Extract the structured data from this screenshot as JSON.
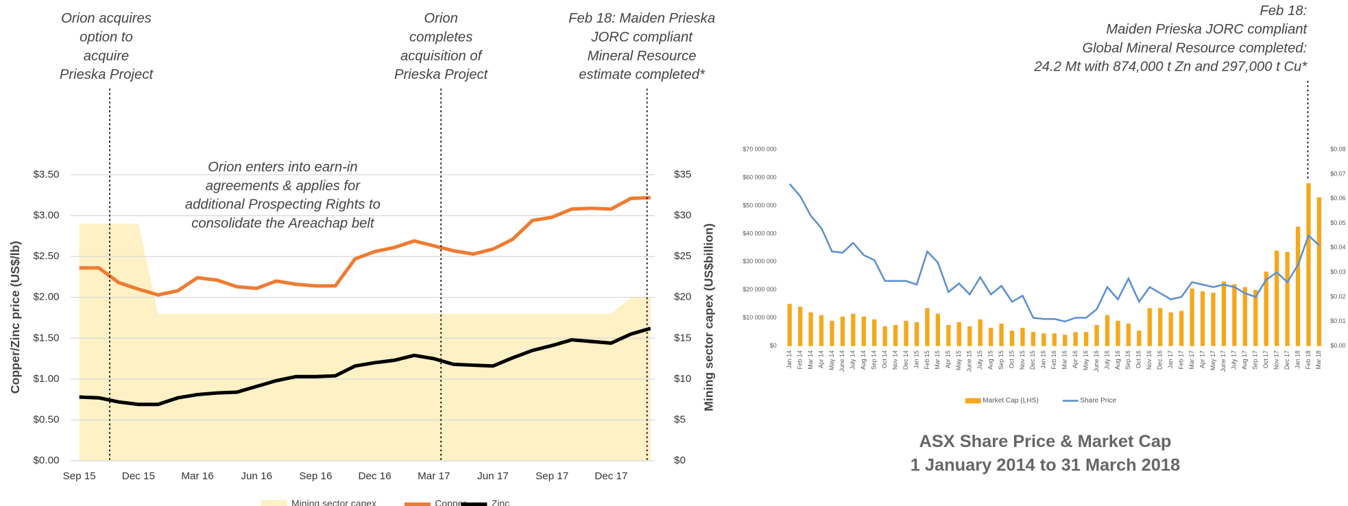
{
  "chart_data": [
    {
      "type": "line",
      "id": "left",
      "categories": [
        "Sep 15",
        null,
        null,
        "Dec 15",
        null,
        null,
        "Mar 16",
        null,
        null,
        "Jun 16",
        null,
        null,
        "Sep 16",
        null,
        null,
        "Dec 16",
        null,
        null,
        "Mar 17",
        null,
        null,
        "Jun 17",
        null,
        null,
        "Sep 17",
        null,
        null,
        "Dec 17",
        null,
        null
      ],
      "series": [
        {
          "name": "Mining sector capex",
          "color": "#fdf1c5",
          "axis": "y2",
          "kind": "area",
          "values": [
            29,
            29,
            29,
            29,
            18,
            18,
            18,
            18,
            18,
            18,
            18,
            18,
            18,
            18,
            18,
            18,
            18,
            18,
            18,
            18,
            18,
            18,
            18,
            18,
            18,
            18,
            18,
            18,
            20,
            20
          ]
        },
        {
          "name": "Copper",
          "color": "#ef7b32",
          "values": [
            2.36,
            2.36,
            2.18,
            2.1,
            2.03,
            2.08,
            2.24,
            2.21,
            2.13,
            2.11,
            2.2,
            2.16,
            2.14,
            2.14,
            2.47,
            2.56,
            2.61,
            2.69,
            2.63,
            2.57,
            2.53,
            2.59,
            2.71,
            2.94,
            2.98,
            3.08,
            3.09,
            3.08,
            3.21,
            3.22
          ]
        },
        {
          "name": "Zinc",
          "color": "#000000",
          "values": [
            0.78,
            0.77,
            0.72,
            0.69,
            0.69,
            0.77,
            0.81,
            0.83,
            0.84,
            0.91,
            0.98,
            1.03,
            1.03,
            1.04,
            1.16,
            1.2,
            1.23,
            1.29,
            1.25,
            1.18,
            1.17,
            1.16,
            1.26,
            1.35,
            1.41,
            1.48,
            1.46,
            1.44,
            1.55,
            1.62
          ]
        }
      ],
      "ylabel": "Copper/Zinc price (US$/lb)",
      "y2label": "Mining sector capex (US$billion)",
      "ylim": [
        0,
        3.5
      ],
      "yticks": [
        {
          "value": 0,
          "label": "$0.00"
        },
        {
          "value": 0.5,
          "label": "$0.50"
        },
        {
          "value": 1,
          "label": "$1.00"
        },
        {
          "value": 1.5,
          "label": "$1.50"
        },
        {
          "value": 2,
          "label": "$2.00"
        },
        {
          "value": 2.5,
          "label": "$2.50"
        },
        {
          "value": 3,
          "label": "$3.00"
        },
        {
          "value": 3.5,
          "label": "$3.50"
        }
      ],
      "y2lim": [
        0,
        35
      ],
      "y2ticks": [
        {
          "value": 0,
          "label": "$0"
        },
        {
          "value": 5,
          "label": "$5"
        },
        {
          "value": 10,
          "label": "$10"
        },
        {
          "value": 15,
          "label": "$15"
        },
        {
          "value": 20,
          "label": "$20"
        },
        {
          "value": 25,
          "label": "$25"
        },
        {
          "value": 30,
          "label": "$30"
        },
        {
          "value": 35,
          "label": "$35"
        }
      ],
      "grid": true,
      "legend": "bottom",
      "annotations": [
        [
          "Orion acquires",
          "option to",
          "acquire",
          "Prieska Project"
        ],
        [
          "Orion",
          "completes",
          "acquisition of",
          "Prieska Project"
        ],
        [
          "Feb 18: Maiden Prieska",
          "JORC compliant",
          "Mineral Resource",
          "estimate completed*"
        ],
        [
          "Orion enters into earn-in",
          "agreements & applies for",
          "additional Prospecting Rights to",
          "consolidate the Areachap belt"
        ]
      ]
    },
    {
      "type": "bar",
      "id": "right",
      "title": [
        "ASX Share Price & Market Cap",
        "1 January 2014 to 31 March 2018"
      ],
      "categories": [
        "Jan 14",
        "Feb 14",
        "Mar 14",
        "Apr 14",
        "May 14",
        "June 14",
        "July 14",
        "Aug 14",
        "Sep 14",
        "Oct 14",
        "Nov 14",
        "Dec 14",
        "Jan 15",
        "Feb 15",
        "Mar 15",
        "Apr 15",
        "May 15",
        "June 15",
        "July 15",
        "Aug 15",
        "Sep 15",
        "Oct 15",
        "Nov 15",
        "Dec 15",
        "Jan 16",
        "Feb 16",
        "Mar 16",
        "Apr 16",
        "May 16",
        "June 16",
        "July 16",
        "Aug 16",
        "Sep 16",
        "Oct 16",
        "Nov 16",
        "Dec 16",
        "Jan 17",
        "Feb 17",
        "Mar 17",
        "Apr 17",
        "May 17",
        "June 17",
        "July 17",
        "Aug 17",
        "Sep 17",
        "Oct 17",
        "Nov 17",
        "Dec 17",
        "Jan 18",
        "Feb 18",
        "Mar 18"
      ],
      "series": [
        {
          "name": "Market Cap (LHS)",
          "color": "#f5a81c",
          "kind": "bar",
          "values": [
            15000000,
            14000000,
            12000000,
            11000000,
            9000000,
            10500000,
            11500000,
            10500000,
            9500000,
            7000000,
            7500000,
            9000000,
            8500000,
            13500000,
            11500000,
            7500000,
            8500000,
            7000000,
            9500000,
            6500000,
            8000000,
            5500000,
            6500000,
            5000000,
            4500000,
            4500000,
            4000000,
            5000000,
            5000000,
            7500000,
            11000000,
            9000000,
            8000000,
            5500000,
            13500000,
            13500000,
            12000000,
            12500000,
            20500000,
            19500000,
            19000000,
            23000000,
            22000000,
            21000000,
            20000000,
            26500000,
            34000000,
            33500000,
            42500000,
            58000000,
            53000000
          ]
        },
        {
          "name": "Share Price",
          "color": "#5b8fd0",
          "axis": "y2",
          "values": [
            0.066,
            0.061,
            0.053,
            0.048,
            0.0385,
            0.038,
            0.042,
            0.037,
            0.035,
            0.0265,
            0.0265,
            0.0265,
            0.025,
            0.0385,
            0.034,
            0.022,
            0.0255,
            0.021,
            0.028,
            0.021,
            0.0245,
            0.018,
            0.0205,
            0.0115,
            0.011,
            0.011,
            0.01,
            0.0115,
            0.0115,
            0.015,
            0.024,
            0.019,
            0.0275,
            0.018,
            0.024,
            0.0215,
            0.019,
            0.02,
            0.026,
            0.025,
            0.024,
            0.025,
            0.024,
            0.0215,
            0.02,
            0.027,
            0.03,
            0.026,
            0.033,
            0.045,
            0.041
          ]
        }
      ],
      "ylim": [
        0,
        70000000
      ],
      "yticks": [
        {
          "value": 0,
          "label": "$0"
        },
        {
          "value": 10000000,
          "label": "$10 000 000"
        },
        {
          "value": 20000000,
          "label": "$20 000 000"
        },
        {
          "value": 30000000,
          "label": "$30 000 000"
        },
        {
          "value": 40000000,
          "label": "$40 000 000"
        },
        {
          "value": 50000000,
          "label": "$50 000 000"
        },
        {
          "value": 60000000,
          "label": "$60 000 000"
        },
        {
          "value": 70000000,
          "label": "$70 000 000"
        }
      ],
      "y2lim": [
        0,
        0.08
      ],
      "y2ticks": [
        {
          "value": 0,
          "label": "$0.00"
        },
        {
          "value": 0.01,
          "label": "$0.01"
        },
        {
          "value": 0.02,
          "label": "$0.02"
        },
        {
          "value": 0.03,
          "label": "$0.03"
        },
        {
          "value": 0.04,
          "label": "$0.04"
        },
        {
          "value": 0.05,
          "label": "$0.05"
        },
        {
          "value": 0.06,
          "label": "$0.06"
        },
        {
          "value": 0.07,
          "label": "$0.07"
        },
        {
          "value": 0.08,
          "label": "$0.08"
        }
      ],
      "grid": false,
      "legend": "bottom",
      "annotations": [
        [
          "Feb 18:",
          "Maiden Prieska JORC compliant",
          "Global Mineral Resource completed:",
          "24.2 Mt with 874,000 t Zn and 297,000 t Cu*"
        ]
      ]
    }
  ]
}
